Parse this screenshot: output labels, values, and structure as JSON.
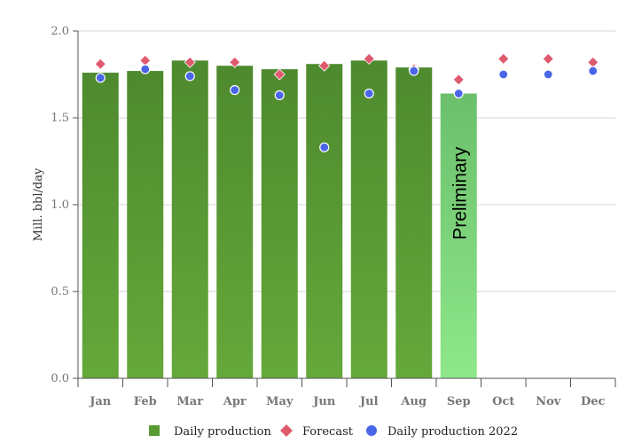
{
  "chart_data": {
    "type": "bar",
    "title": "",
    "xlabel": "",
    "ylabel": "Mill. bbl/day",
    "ylim": [
      0,
      2
    ],
    "yticks": [
      "0.0",
      "0.5",
      "1.0",
      "1.5",
      "2.0"
    ],
    "grid": true,
    "categories": [
      "Jan",
      "Feb",
      "Mar",
      "Apr",
      "May",
      "Jun",
      "Jul",
      "Aug",
      "Sep",
      "Oct",
      "Nov",
      "Dec"
    ],
    "series": [
      {
        "name": "Daily production",
        "kind": "bar",
        "color": "#5a9a32",
        "values": [
          1.76,
          1.77,
          1.83,
          1.8,
          1.78,
          1.81,
          1.83,
          1.79,
          1.64,
          null,
          null,
          null
        ]
      },
      {
        "name": "Forecast",
        "kind": "diamond",
        "color": "#e05a6e",
        "values": [
          1.81,
          1.83,
          1.82,
          1.82,
          1.75,
          1.8,
          1.84,
          1.78,
          1.72,
          1.84,
          1.84,
          1.82
        ]
      },
      {
        "name": "Daily production 2022",
        "kind": "circle",
        "color": "#4a66e8",
        "values": [
          1.73,
          1.78,
          1.74,
          1.66,
          1.63,
          1.33,
          1.64,
          1.77,
          1.64,
          1.75,
          1.75,
          1.77
        ]
      }
    ],
    "preliminary_index": 8,
    "preliminary_color": "#7ccf72",
    "annotations": [
      "Preliminary"
    ],
    "legend_position": "bottom-center"
  }
}
